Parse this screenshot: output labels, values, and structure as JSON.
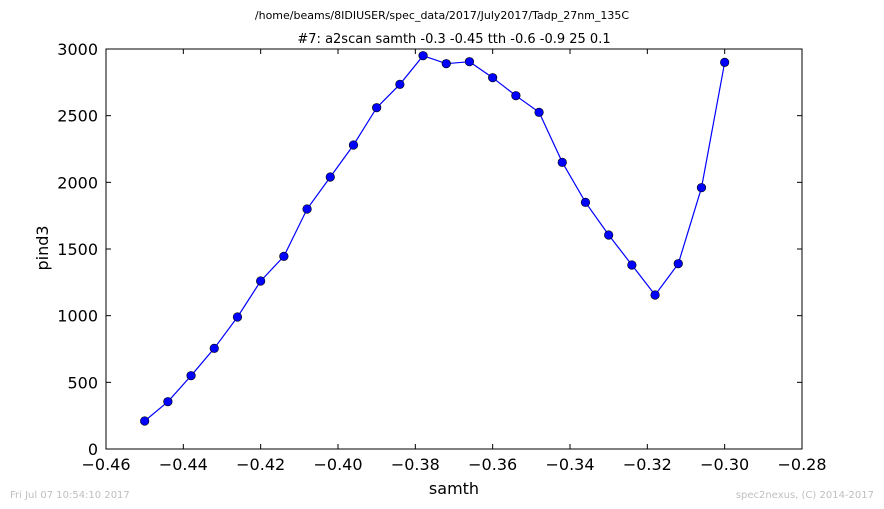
{
  "header": {
    "path": "/home/beams/8IDIUSER/spec_data/2017/July2017/Tadp_27nm_135C",
    "title": "#7: a2scan  samth -0.3 -0.45  tth -0.6 -0.9  25 0.1"
  },
  "footer": {
    "left": "Fri Jul 07 10:54:10 2017",
    "right": "spec2nexus, (C) 2014-2017"
  },
  "chart_data": {
    "type": "line",
    "title": "#7: a2scan  samth -0.3 -0.45  tth -0.6 -0.9  25 0.1",
    "xlabel": "samth",
    "ylabel": "pind3",
    "xlim": [
      -0.46,
      -0.28
    ],
    "ylim": [
      0,
      3000
    ],
    "xticks": [
      -0.46,
      -0.44,
      -0.42,
      -0.4,
      -0.38,
      -0.36,
      -0.34,
      -0.32,
      -0.3,
      -0.28
    ],
    "xtick_labels": [
      "−0.46",
      "−0.44",
      "−0.42",
      "−0.40",
      "−0.38",
      "−0.36",
      "−0.34",
      "−0.32",
      "−0.30",
      "−0.28"
    ],
    "yticks": [
      0,
      500,
      1000,
      1500,
      2000,
      2500,
      3000
    ],
    "ytick_labels": [
      "0",
      "500",
      "1000",
      "1500",
      "2000",
      "2500",
      "3000"
    ],
    "grid": false,
    "line_color": "#0000ff",
    "marker": "circle",
    "x": [
      -0.45,
      -0.444,
      -0.438,
      -0.432,
      -0.426,
      -0.42,
      -0.414,
      -0.408,
      -0.402,
      -0.396,
      -0.39,
      -0.384,
      -0.378,
      -0.372,
      -0.366,
      -0.36,
      -0.354,
      -0.348,
      -0.342,
      -0.336,
      -0.33,
      -0.324,
      -0.318,
      -0.312,
      -0.306,
      -0.3
    ],
    "y": [
      210,
      355,
      550,
      755,
      990,
      1260,
      1445,
      1800,
      2040,
      2280,
      2560,
      2735,
      2950,
      2890,
      2905,
      2785,
      2650,
      2525,
      2150,
      1850,
      1605,
      1380,
      1155,
      1390,
      1960,
      2900
    ]
  }
}
